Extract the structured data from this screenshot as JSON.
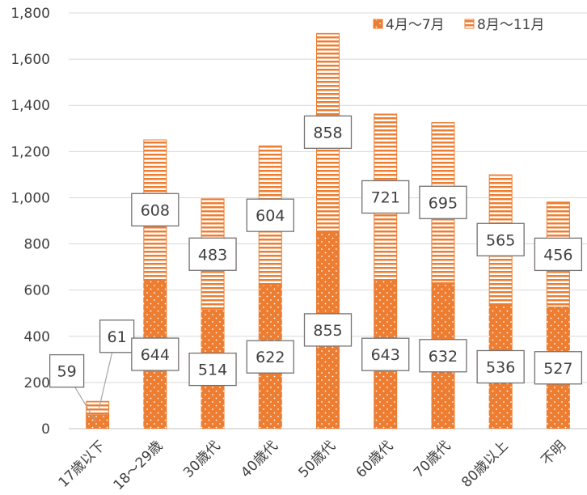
{
  "chart_data": {
    "type": "bar",
    "stacked": true,
    "categories": [
      "17歳以下",
      "18～29歳",
      "30歳代",
      "40歳代",
      "50歳代",
      "60歳代",
      "70歳代",
      "80歳以上",
      "不明"
    ],
    "series": [
      {
        "name": "4月～7月",
        "values": [
          59,
          644,
          514,
          622,
          855,
          643,
          632,
          536,
          527
        ],
        "color": "#ED7D31",
        "pattern": "dots"
      },
      {
        "name": "8月～11月",
        "values": [
          61,
          608,
          483,
          604,
          858,
          721,
          695,
          565,
          456
        ],
        "color": "#ED7D31",
        "pattern": "horizontal-stripes"
      }
    ],
    "ylim": [
      0,
      1800
    ],
    "yticks": [
      "0",
      "200",
      "400",
      "600",
      "800",
      "1,000",
      "1,200",
      "1,400",
      "1,600",
      "1,800"
    ],
    "grid": true,
    "legend": "top-right"
  }
}
